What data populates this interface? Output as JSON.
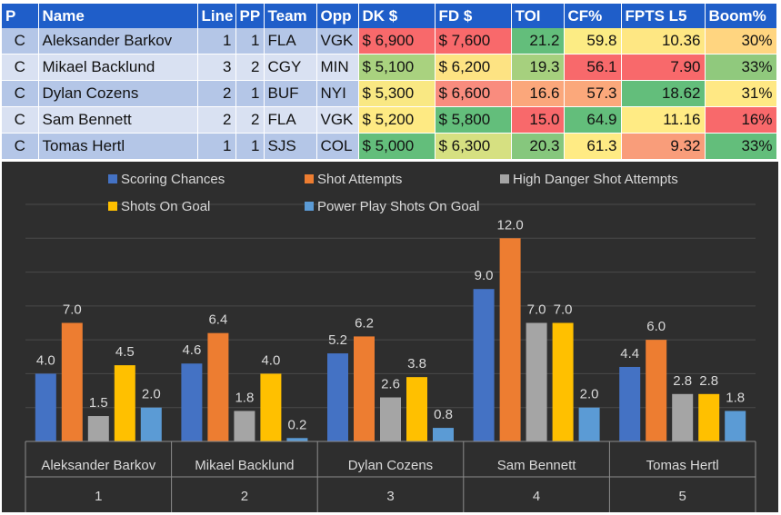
{
  "table": {
    "headers": [
      "P",
      "Name",
      "Line",
      "PP",
      "Team",
      "Opp",
      "DK $",
      "FD $",
      "TOI",
      "CF%",
      "FPTS L5",
      "Boom%"
    ],
    "rows": [
      {
        "pos": "C",
        "name": "Aleksander Barkov",
        "line": "1",
        "pp": "1",
        "team": "FLA",
        "opp": "VGK",
        "dk": "$ 6,900",
        "fd": "$ 7,600",
        "toi": "21.2",
        "cf": "59.8",
        "fpts": "10.36",
        "boom": "30%"
      },
      {
        "pos": "C",
        "name": "Mikael Backlund",
        "line": "3",
        "pp": "2",
        "team": "CGY",
        "opp": "MIN",
        "dk": "$ 5,100",
        "fd": "$ 6,200",
        "toi": "19.3",
        "cf": "56.1",
        "fpts": "7.90",
        "boom": "33%"
      },
      {
        "pos": "C",
        "name": "Dylan Cozens",
        "line": "2",
        "pp": "1",
        "team": "BUF",
        "opp": "NYI",
        "dk": "$ 5,300",
        "fd": "$ 6,600",
        "toi": "16.6",
        "cf": "57.3",
        "fpts": "18.62",
        "boom": "31%"
      },
      {
        "pos": "C",
        "name": "Sam Bennett",
        "line": "2",
        "pp": "2",
        "team": "FLA",
        "opp": "VGK",
        "dk": "$ 5,200",
        "fd": "$ 5,800",
        "toi": "15.0",
        "cf": "64.9",
        "fpts": "11.16",
        "boom": "16%"
      },
      {
        "pos": "C",
        "name": "Tomas Hertl",
        "line": "1",
        "pp": "1",
        "team": "SJS",
        "opp": "COL",
        "dk": "$ 5,000",
        "fd": "$ 6,300",
        "toi": "20.3",
        "cf": "61.3",
        "fpts": "9.32",
        "boom": "33%"
      }
    ],
    "cell_colors": {
      "row_bg": [
        "#b4c6e7",
        "#d9e1f2",
        "#b4c6e7",
        "#d9e1f2",
        "#b4c6e7"
      ],
      "dk": [
        "#f8696b",
        "#a9d27f",
        "#f9e883",
        "#feea83",
        "#63be7b"
      ],
      "fd": [
        "#f8696b",
        "#fde383",
        "#f98c7e",
        "#63be7b",
        "#d6e081"
      ],
      "toi": [
        "#63be7b",
        "#a6d07e",
        "#fba77b",
        "#f8696b",
        "#86c77d"
      ],
      "cf": [
        "#fcec84",
        "#f8696b",
        "#fba87b",
        "#63be7b",
        "#ffeb84"
      ],
      "fpts": [
        "#fee783",
        "#f8696b",
        "#63be7b",
        "#ffeb84",
        "#f99d7a"
      ],
      "boom": [
        "#ffd580",
        "#90c97d",
        "#ffe884",
        "#f8696b",
        "#63be7b"
      ]
    }
  },
  "chart_data": {
    "type": "bar",
    "categories": [
      "Aleksander Barkov",
      "Mikael Backlund",
      "Dylan Cozens",
      "Sam Bennett",
      "Tomas Hertl"
    ],
    "category_numbers": [
      "1",
      "2",
      "3",
      "4",
      "5"
    ],
    "series": [
      {
        "name": "Scoring Chances",
        "color": "#4472c4",
        "values": [
          4.0,
          4.6,
          5.2,
          9.0,
          4.4
        ]
      },
      {
        "name": "Shot Attempts",
        "color": "#ed7d31",
        "values": [
          7.0,
          6.4,
          6.2,
          12.0,
          6.0
        ]
      },
      {
        "name": "High Danger Shot Attempts",
        "color": "#a5a5a5",
        "values": [
          1.5,
          1.8,
          2.6,
          7.0,
          2.8
        ]
      },
      {
        "name": "Shots On Goal",
        "color": "#ffc000",
        "values": [
          4.5,
          4.0,
          3.8,
          7.0,
          2.8
        ]
      },
      {
        "name": "Power Play Shots On Goal",
        "color": "#5b9bd5",
        "values": [
          2.0,
          0.2,
          0.8,
          2.0,
          1.8
        ]
      }
    ],
    "ylim": [
      0,
      14
    ],
    "grid": true,
    "legend_position": "top",
    "title": "",
    "xlabel": "",
    "ylabel": ""
  }
}
